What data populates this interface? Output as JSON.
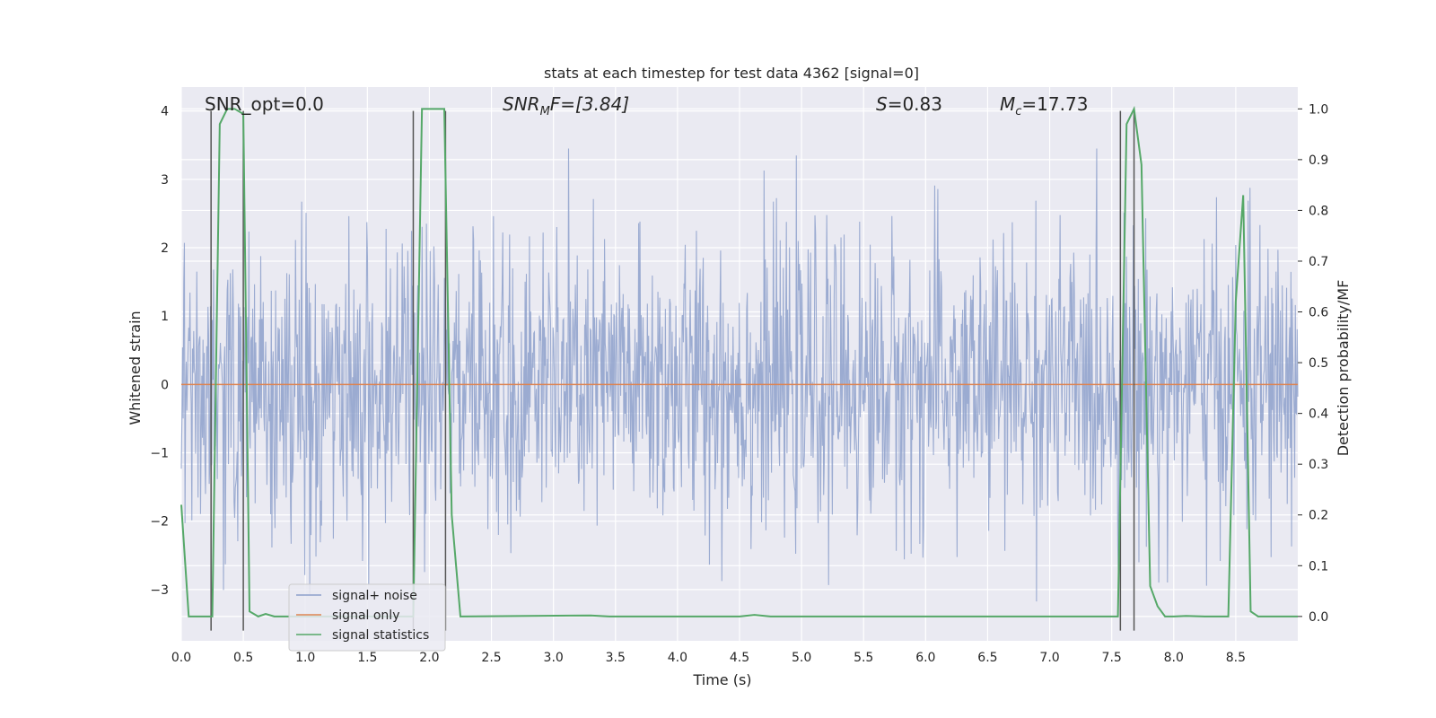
{
  "chart_data": {
    "type": "line",
    "title": "stats at each timestep for test data 4362 [signal=0]",
    "xlabel": "Time (s)",
    "ylabel": "Whitened strain",
    "ylabel_right": "Detection probability/MF",
    "xlim": [
      0.0,
      9.0
    ],
    "ylim": [
      -3.75,
      4.35
    ],
    "ylim_right": [
      -0.048,
      1.043
    ],
    "x_ticks": [
      "0.0",
      "0.5",
      "1.0",
      "1.5",
      "2.0",
      "2.5",
      "3.0",
      "3.5",
      "4.0",
      "4.5",
      "5.0",
      "5.5",
      "6.0",
      "6.5",
      "7.0",
      "7.5",
      "8.0",
      "8.5"
    ],
    "y_ticks": [
      "−3",
      "−2",
      "−1",
      "0",
      "1",
      "2",
      "3",
      "4"
    ],
    "y_ticks_right": [
      "0.0",
      "0.1",
      "0.2",
      "0.3",
      "0.4",
      "0.5",
      "0.6",
      "0.7",
      "0.8",
      "0.9",
      "1.0"
    ],
    "grid": true,
    "legend_position": "lower-left",
    "annotations": {
      "snr_opt": "SNR_opt=0.0",
      "snr_mf_main": "SNR",
      "snr_mf_sub": "M",
      "snr_mf_rest": "F=[3.84]",
      "s_main": "S",
      "s_rest": "=0.83",
      "mc_main": "M",
      "mc_sub": "c",
      "mc_rest": "=17.73"
    },
    "series": [
      {
        "name": "signal+ noise",
        "color": "#8da0cb",
        "axis": "left",
        "sample_count": 1800,
        "envelope_note": "white-noise strain roughly within [-3.6, 3.4]"
      },
      {
        "name": "signal only",
        "color": "#dd8452",
        "axis": "left",
        "x": [
          0.0,
          9.0
        ],
        "y": [
          0.0,
          0.0
        ]
      },
      {
        "name": "signal statistics",
        "color": "#55a868",
        "axis": "right",
        "x": [
          0.0,
          0.06,
          0.25,
          0.31,
          0.37,
          0.43,
          0.5,
          0.55,
          0.62,
          0.68,
          0.75,
          1.87,
          1.94,
          2.12,
          2.18,
          2.25,
          3.3,
          3.45,
          4.5,
          4.62,
          4.75,
          7.55,
          7.62,
          7.68,
          7.74,
          7.81,
          7.87,
          7.93,
          8.0,
          8.1,
          8.25,
          8.37,
          8.44,
          8.5,
          8.56,
          8.62,
          8.68,
          9.0
        ],
        "y": [
          0.22,
          0.0,
          0.0,
          0.97,
          1.0,
          1.0,
          0.99,
          0.01,
          0.0,
          0.005,
          0.0,
          0.0,
          1.0,
          1.0,
          0.2,
          0.0,
          0.002,
          0.0,
          0.0,
          0.003,
          0.0,
          0.0,
          0.97,
          1.0,
          0.89,
          0.06,
          0.02,
          0.0,
          0.0,
          0.001,
          0.0,
          0.0,
          0.0,
          0.62,
          0.83,
          0.01,
          0.0,
          0.0
        ]
      }
    ],
    "vertical_markers": {
      "color": "#555555",
      "x": [
        0.24,
        0.5,
        1.87,
        2.13,
        7.57,
        7.68
      ],
      "y_top": 4.0,
      "y_bottom": -3.6
    }
  }
}
